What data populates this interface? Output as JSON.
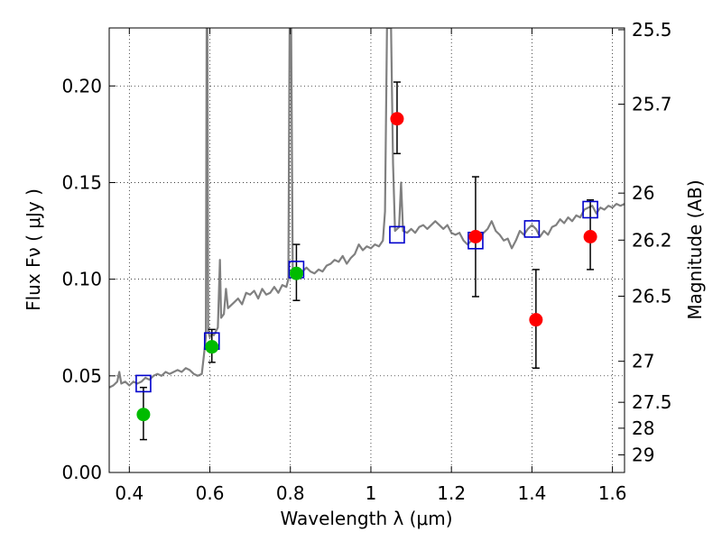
{
  "chart_data": {
    "type": "scatter",
    "xlabel": "Wavelength  λ (μm)",
    "ylabel": "Flux  Fν  ( μJy )",
    "y2label": "Magnitude (AB)",
    "xlim": [
      0.35,
      1.63
    ],
    "ylim": [
      0.0,
      0.23
    ],
    "grid": true,
    "x_ticks": [
      {
        "value": 0.4,
        "label": "0.4"
      },
      {
        "value": 0.6,
        "label": "0.6"
      },
      {
        "value": 0.8,
        "label": "0.8"
      },
      {
        "value": 1.0,
        "label": "1"
      },
      {
        "value": 1.2,
        "label": "1.2"
      },
      {
        "value": 1.4,
        "label": "1.4"
      },
      {
        "value": 1.6,
        "label": "1.6"
      }
    ],
    "y_ticks": [
      {
        "value": 0.0,
        "label": "0.00"
      },
      {
        "value": 0.05,
        "label": "0.05"
      },
      {
        "value": 0.1,
        "label": "0.10"
      },
      {
        "value": 0.15,
        "label": "0.15"
      },
      {
        "value": 0.2,
        "label": "0.20"
      }
    ],
    "y2_ticks": [
      {
        "mag": 25.5,
        "label": "25.5"
      },
      {
        "mag": 25.7,
        "label": "25.7"
      },
      {
        "mag": 26.0,
        "label": "26"
      },
      {
        "mag": 26.2,
        "label": "26.2"
      },
      {
        "mag": 26.5,
        "label": "26.5"
      },
      {
        "mag": 27.0,
        "label": "27"
      },
      {
        "mag": 27.5,
        "label": "27.5"
      },
      {
        "mag": 28.0,
        "label": "28"
      },
      {
        "mag": 29.0,
        "label": "29"
      }
    ],
    "template_spectrum": {
      "color": "#808080",
      "points": [
        [
          0.35,
          0.044
        ],
        [
          0.36,
          0.045
        ],
        [
          0.37,
          0.047
        ],
        [
          0.375,
          0.052
        ],
        [
          0.38,
          0.046
        ],
        [
          0.39,
          0.047
        ],
        [
          0.4,
          0.045
        ],
        [
          0.41,
          0.047
        ],
        [
          0.42,
          0.046
        ],
        [
          0.43,
          0.047
        ],
        [
          0.44,
          0.049
        ],
        [
          0.45,
          0.048
        ],
        [
          0.46,
          0.05
        ],
        [
          0.47,
          0.051
        ],
        [
          0.48,
          0.05
        ],
        [
          0.49,
          0.052
        ],
        [
          0.5,
          0.051
        ],
        [
          0.51,
          0.052
        ],
        [
          0.52,
          0.053
        ],
        [
          0.53,
          0.052
        ],
        [
          0.54,
          0.054
        ],
        [
          0.55,
          0.053
        ],
        [
          0.56,
          0.051
        ],
        [
          0.57,
          0.05
        ],
        [
          0.58,
          0.051
        ],
        [
          0.585,
          0.06
        ],
        [
          0.59,
          0.07
        ],
        [
          0.592,
          0.23
        ],
        [
          0.594,
          0.23
        ],
        [
          0.596,
          0.073
        ],
        [
          0.6,
          0.07
        ],
        [
          0.605,
          0.072
        ],
        [
          0.61,
          0.071
        ],
        [
          0.62,
          0.075
        ],
        [
          0.625,
          0.11
        ],
        [
          0.628,
          0.08
        ],
        [
          0.635,
          0.082
        ],
        [
          0.64,
          0.095
        ],
        [
          0.645,
          0.085
        ],
        [
          0.65,
          0.086
        ],
        [
          0.66,
          0.088
        ],
        [
          0.67,
          0.09
        ],
        [
          0.68,
          0.087
        ],
        [
          0.69,
          0.093
        ],
        [
          0.7,
          0.092
        ],
        [
          0.71,
          0.094
        ],
        [
          0.72,
          0.09
        ],
        [
          0.73,
          0.095
        ],
        [
          0.74,
          0.092
        ],
        [
          0.75,
          0.093
        ],
        [
          0.76,
          0.096
        ],
        [
          0.77,
          0.093
        ],
        [
          0.78,
          0.097
        ],
        [
          0.79,
          0.096
        ],
        [
          0.795,
          0.1
        ],
        [
          0.798,
          0.23
        ],
        [
          0.802,
          0.23
        ],
        [
          0.806,
          0.102
        ],
        [
          0.81,
          0.103
        ],
        [
          0.82,
          0.105
        ],
        [
          0.83,
          0.104
        ],
        [
          0.84,
          0.106
        ],
        [
          0.85,
          0.104
        ],
        [
          0.86,
          0.103
        ],
        [
          0.87,
          0.105
        ],
        [
          0.88,
          0.104
        ],
        [
          0.89,
          0.107
        ],
        [
          0.9,
          0.108
        ],
        [
          0.91,
          0.11
        ],
        [
          0.92,
          0.109
        ],
        [
          0.93,
          0.112
        ],
        [
          0.94,
          0.108
        ],
        [
          0.95,
          0.111
        ],
        [
          0.96,
          0.113
        ],
        [
          0.97,
          0.118
        ],
        [
          0.98,
          0.115
        ],
        [
          0.99,
          0.117
        ],
        [
          1.0,
          0.116
        ],
        [
          1.01,
          0.118
        ],
        [
          1.02,
          0.117
        ],
        [
          1.03,
          0.12
        ],
        [
          1.035,
          0.135
        ],
        [
          1.04,
          0.23
        ],
        [
          1.05,
          0.23
        ],
        [
          1.055,
          0.16
        ],
        [
          1.06,
          0.125
        ],
        [
          1.07,
          0.127
        ],
        [
          1.075,
          0.15
        ],
        [
          1.08,
          0.125
        ],
        [
          1.09,
          0.124
        ],
        [
          1.1,
          0.126
        ],
        [
          1.11,
          0.124
        ],
        [
          1.12,
          0.127
        ],
        [
          1.13,
          0.128
        ],
        [
          1.14,
          0.126
        ],
        [
          1.15,
          0.128
        ],
        [
          1.16,
          0.13
        ],
        [
          1.17,
          0.128
        ],
        [
          1.18,
          0.126
        ],
        [
          1.19,
          0.128
        ],
        [
          1.2,
          0.124
        ],
        [
          1.21,
          0.123
        ],
        [
          1.22,
          0.124
        ],
        [
          1.23,
          0.12
        ],
        [
          1.24,
          0.118
        ],
        [
          1.25,
          0.12
        ],
        [
          1.26,
          0.122
        ],
        [
          1.27,
          0.122
        ],
        [
          1.28,
          0.124
        ],
        [
          1.29,
          0.126
        ],
        [
          1.3,
          0.13
        ],
        [
          1.31,
          0.125
        ],
        [
          1.32,
          0.123
        ],
        [
          1.33,
          0.12
        ],
        [
          1.34,
          0.121
        ],
        [
          1.35,
          0.116
        ],
        [
          1.36,
          0.12
        ],
        [
          1.37,
          0.125
        ],
        [
          1.38,
          0.123
        ],
        [
          1.39,
          0.126
        ],
        [
          1.4,
          0.128
        ],
        [
          1.41,
          0.126
        ],
        [
          1.42,
          0.122
        ],
        [
          1.43,
          0.125
        ],
        [
          1.44,
          0.123
        ],
        [
          1.45,
          0.127
        ],
        [
          1.46,
          0.128
        ],
        [
          1.47,
          0.131
        ],
        [
          1.48,
          0.129
        ],
        [
          1.49,
          0.132
        ],
        [
          1.5,
          0.13
        ],
        [
          1.51,
          0.133
        ],
        [
          1.52,
          0.132
        ],
        [
          1.53,
          0.136
        ],
        [
          1.54,
          0.137
        ],
        [
          1.55,
          0.138
        ],
        [
          1.56,
          0.134
        ],
        [
          1.57,
          0.137
        ],
        [
          1.58,
          0.136
        ],
        [
          1.59,
          0.138
        ],
        [
          1.6,
          0.137
        ],
        [
          1.61,
          0.139
        ],
        [
          1.62,
          0.138
        ],
        [
          1.63,
          0.139
        ]
      ]
    },
    "model_points": {
      "color": "#0000cc",
      "points": [
        [
          0.435,
          0.046
        ],
        [
          0.605,
          0.068
        ],
        [
          0.815,
          0.105
        ],
        [
          1.065,
          0.123
        ],
        [
          1.26,
          0.12
        ],
        [
          1.4,
          0.126
        ],
        [
          1.545,
          0.136
        ]
      ]
    },
    "detections": {
      "color": "#00bb00",
      "points": [
        {
          "x": 0.435,
          "y": 0.03,
          "ylo": 0.017,
          "yhi": 0.044
        },
        {
          "x": 0.605,
          "y": 0.065,
          "ylo": 0.057,
          "yhi": 0.074
        },
        {
          "x": 0.815,
          "y": 0.103,
          "ylo": 0.089,
          "yhi": 0.118
        }
      ]
    },
    "measurements": {
      "color": "#ff0000",
      "points": [
        {
          "x": 1.065,
          "y": 0.183,
          "ylo": 0.165,
          "yhi": 0.202
        },
        {
          "x": 1.26,
          "y": 0.122,
          "ylo": 0.091,
          "yhi": 0.153
        },
        {
          "x": 1.41,
          "y": 0.079,
          "ylo": 0.054,
          "yhi": 0.105
        },
        {
          "x": 1.545,
          "y": 0.122,
          "ylo": 0.105,
          "yhi": 0.141
        }
      ]
    }
  }
}
